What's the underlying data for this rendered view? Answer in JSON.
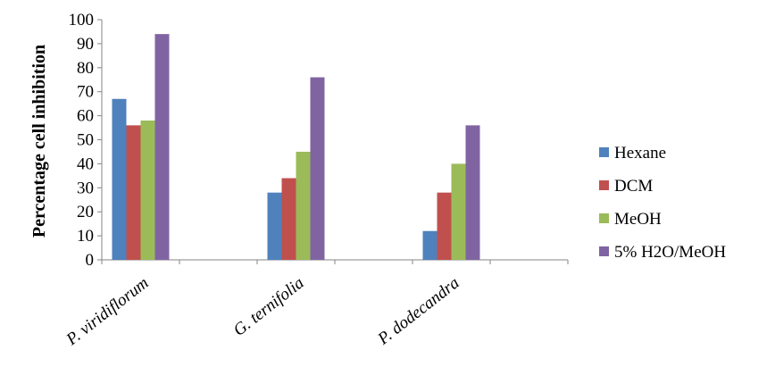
{
  "chart_data": {
    "type": "bar",
    "title": "",
    "xlabel": "",
    "ylabel": "Percentage cell inhibition",
    "ylim": [
      0,
      100
    ],
    "yticks": [
      0,
      10,
      20,
      30,
      40,
      50,
      60,
      70,
      80,
      90,
      100
    ],
    "categories": [
      "P. viridiflorum",
      "G. ternifolia",
      "P. dodecandra"
    ],
    "series": [
      {
        "name": "Hexane",
        "color": "#4F81BD",
        "values": [
          67,
          28,
          12
        ]
      },
      {
        "name": "DCM",
        "color": "#C0504D",
        "values": [
          56,
          34,
          28
        ]
      },
      {
        "name": "MeOH",
        "color": "#9BBB59",
        "values": [
          58,
          45,
          40
        ]
      },
      {
        "name": "5% H2O/MeOH",
        "color": "#8064A2",
        "values": [
          94,
          76,
          56
        ]
      }
    ],
    "grid": false,
    "legend_position": "right"
  }
}
